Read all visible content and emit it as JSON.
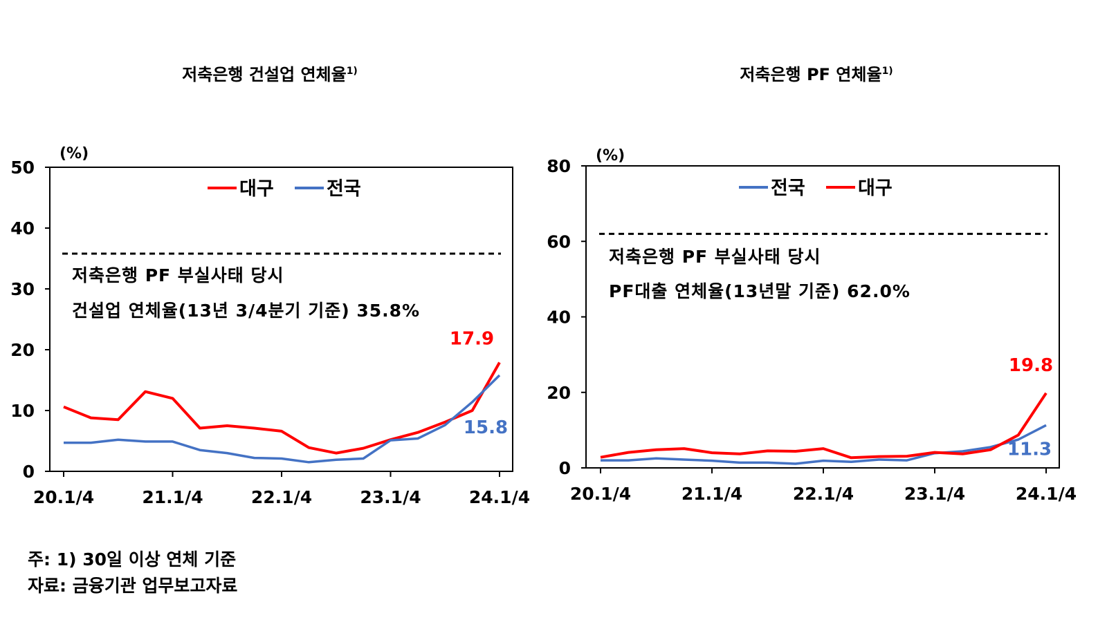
{
  "notes": {
    "line1": "주: 1) 30일 이상 연체 기준",
    "line2": "자료: 금융기관 업무보고자료"
  },
  "chart_data": [
    {
      "type": "line",
      "title": "저축은행 건설업 연체율",
      "title_superscript": "1)",
      "ylabel": "(%)",
      "ylim": [
        0,
        50
      ],
      "yticks": [
        0,
        10,
        20,
        30,
        40,
        50
      ],
      "x": [
        "20.1/4",
        "20.2/4",
        "20.3/4",
        "20.4/4",
        "21.1/4",
        "21.2/4",
        "21.3/4",
        "21.4/4",
        "22.1/4",
        "22.2/4",
        "22.3/4",
        "22.4/4",
        "23.1/4",
        "23.2/4",
        "23.3/4",
        "23.4/4",
        "24.1/4"
      ],
      "xtick_labels": [
        "20.1/4",
        "21.1/4",
        "22.1/4",
        "23.1/4",
        "24.1/4"
      ],
      "series": [
        {
          "name": "대구",
          "color": "#ff0000",
          "values": [
            10.6,
            8.8,
            8.5,
            13.1,
            12.0,
            7.1,
            7.5,
            7.1,
            6.6,
            3.9,
            3.0,
            3.8,
            5.2,
            6.4,
            8.1,
            10.0,
            17.9
          ],
          "end_label": "17.9"
        },
        {
          "name": "전국",
          "color": "#4472c4",
          "values": [
            4.7,
            4.7,
            5.2,
            4.9,
            4.9,
            3.5,
            3.0,
            2.2,
            2.1,
            1.5,
            1.9,
            2.1,
            5.1,
            5.4,
            7.6,
            11.4,
            15.8
          ],
          "end_label": "15.8"
        }
      ],
      "reference": {
        "value": 35.8,
        "style": "dashed",
        "label_line1": "저축은행 PF 부실사태 당시",
        "label_line2": "건설업 연체율(13년 3/4분기 기준) 35.8%"
      },
      "legend": "top-center"
    },
    {
      "type": "line",
      "title": "저축은행 PF 연체율",
      "title_superscript": "1)",
      "ylabel": "(%)",
      "ylim": [
        0,
        80
      ],
      "yticks": [
        0,
        20,
        40,
        60,
        80
      ],
      "x": [
        "20.1/4",
        "20.2/4",
        "20.3/4",
        "20.4/4",
        "21.1/4",
        "21.2/4",
        "21.3/4",
        "21.4/4",
        "22.1/4",
        "22.2/4",
        "22.3/4",
        "22.4/4",
        "23.1/4",
        "23.2/4",
        "23.3/4",
        "23.4/4",
        "24.1/4"
      ],
      "xtick_labels": [
        "20.1/4",
        "21.1/4",
        "22.1/4",
        "23.1/4",
        "24.1/4"
      ],
      "series": [
        {
          "name": "전국",
          "color": "#4472c4",
          "values": [
            2.0,
            2.0,
            2.5,
            2.2,
            1.9,
            1.4,
            1.4,
            1.1,
            1.9,
            1.6,
            2.2,
            2.0,
            3.9,
            4.4,
            5.5,
            7.5,
            11.3
          ],
          "end_label": "11.3"
        },
        {
          "name": "대구",
          "color": "#ff0000",
          "values": [
            2.8,
            4.1,
            4.8,
            5.1,
            4.0,
            3.7,
            4.5,
            4.4,
            5.1,
            2.7,
            3.0,
            3.1,
            4.1,
            3.7,
            4.8,
            8.7,
            19.8
          ],
          "end_label": "19.8"
        }
      ],
      "reference": {
        "value": 62.0,
        "style": "dashed",
        "label_line1": "저축은행 PF 부실사태 당시",
        "label_line2": "PF대출 연체율(13년말 기준) 62.0%"
      },
      "legend": "top-center"
    }
  ]
}
